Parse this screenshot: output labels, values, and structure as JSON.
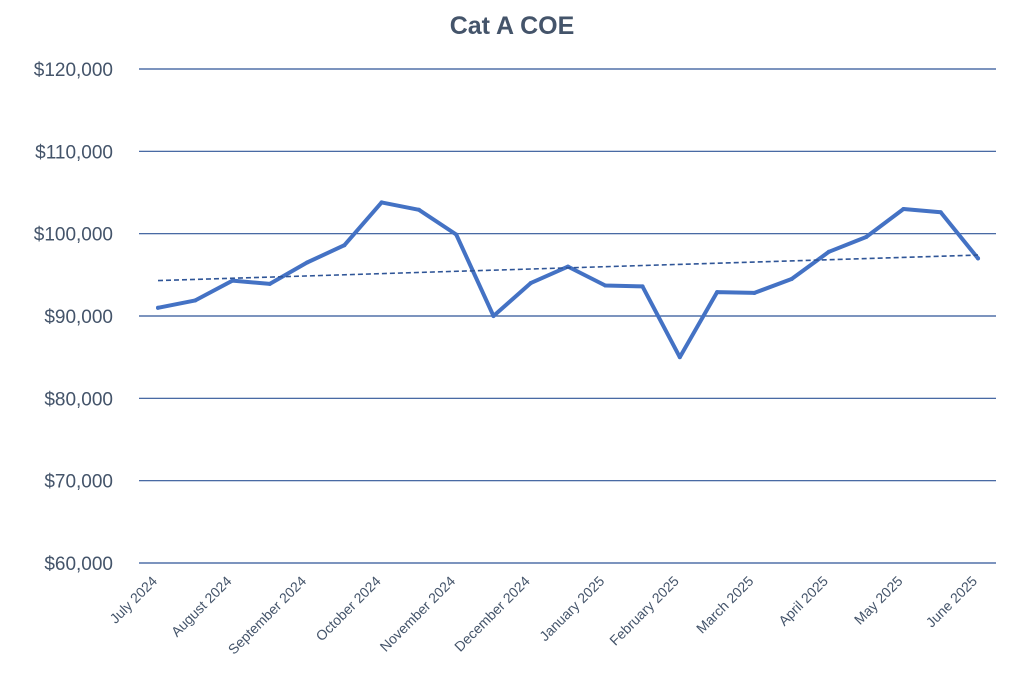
{
  "chart_data": {
    "type": "line",
    "title": "Cat A COE",
    "xlabel": "",
    "ylabel": "",
    "ylim": [
      60000,
      120000
    ],
    "y_ticks": [
      "$60,000",
      "$70,000",
      "$80,000",
      "$90,000",
      "$100,000",
      "$110,000",
      "$120,000"
    ],
    "y_tick_values": [
      60000,
      70000,
      80000,
      90000,
      100000,
      110000,
      120000
    ],
    "x_tick_labels": [
      "July 2024",
      "August 2024",
      "September 2024",
      "October 2024",
      "November 2024",
      "December 2024",
      "January 2025",
      "February 2025",
      "March 2025",
      "April 2025",
      "May 2025",
      "June 2025"
    ],
    "grid": true,
    "legend": "none",
    "series": [
      {
        "values": [
          91000,
          91900,
          94300,
          93900,
          96500,
          98600,
          103800,
          102900,
          99900,
          90000,
          94000,
          96000,
          93700,
          93600,
          85000,
          92900,
          92800,
          94500,
          97800,
          99600,
          103000,
          102600,
          97000
        ],
        "color": "#4472c4",
        "style": "solid"
      },
      {
        "trendline": "linear",
        "values": [
          94300,
          97400
        ],
        "color": "#2f5597",
        "style": "dashed"
      }
    ],
    "colors": {
      "gridline": "#2f5597",
      "text": "#44546a"
    }
  }
}
